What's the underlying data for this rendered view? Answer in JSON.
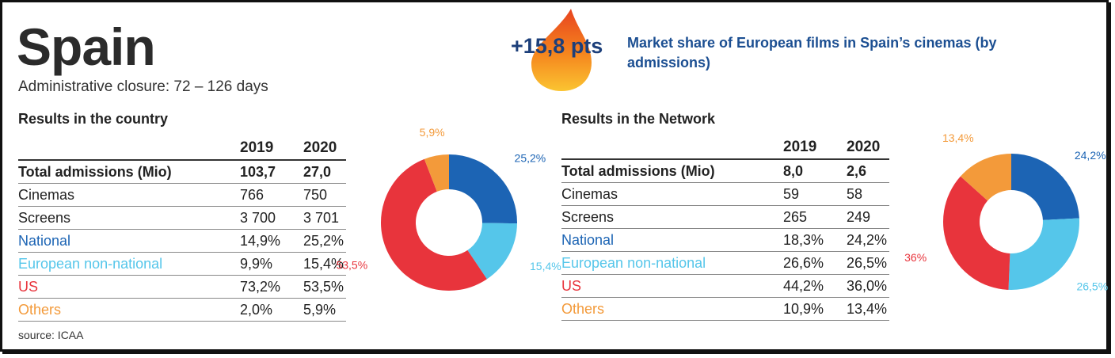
{
  "header": {
    "title": "Spain",
    "subtitle": "Administrative closure: 72 – 126 days",
    "badge_value": "+15,8 pts",
    "headline": "Market share of European films in Spain’s cinemas (by admissions)"
  },
  "colors": {
    "national": "#1c64b4",
    "european_non_national": "#55c6ea",
    "us": "#e8343c",
    "others": "#f39a3a"
  },
  "country": {
    "section_title": "Results in the country",
    "col_2019": "2019",
    "col_2020": "2020",
    "rows": [
      {
        "label": "Total admissions (Mio)",
        "v2019": "103,7",
        "v2020": "27,0"
      },
      {
        "label": "Cinemas",
        "v2019": "766",
        "v2020": "750"
      },
      {
        "label": "Screens",
        "v2019": "3 700",
        "v2020": "3 701"
      },
      {
        "label": "National",
        "v2019": "14,9%",
        "v2020": "25,2%"
      },
      {
        "label": "European non-national",
        "v2019": "9,9%",
        "v2020": "15,4%"
      },
      {
        "label": "US",
        "v2019": "73,2%",
        "v2020": "53,5%"
      },
      {
        "label": "Others",
        "v2019": "2,0%",
        "v2020": "5,9%"
      }
    ]
  },
  "network": {
    "section_title": "Results in the Network",
    "col_2019": "2019",
    "col_2020": "2020",
    "rows": [
      {
        "label": "Total admissions (Mio)",
        "v2019": "8,0",
        "v2020": "2,6"
      },
      {
        "label": "Cinemas",
        "v2019": "59",
        "v2020": "58"
      },
      {
        "label": "Screens",
        "v2019": "265",
        "v2020": "249"
      },
      {
        "label": "National",
        "v2019": "18,3%",
        "v2020": "24,2%"
      },
      {
        "label": "European non-national",
        "v2019": "26,6%",
        "v2020": "26,5%"
      },
      {
        "label": "US",
        "v2019": "44,2%",
        "v2020": "36,0%"
      },
      {
        "label": "Others",
        "v2019": "10,9%",
        "v2020": "13,4%"
      }
    ]
  },
  "chart_data": [
    {
      "type": "pie",
      "categories": [
        "National",
        "European non-national",
        "US",
        "Others"
      ],
      "values": [
        25.2,
        15.4,
        53.5,
        5.9
      ],
      "labels": [
        "25,2%",
        "15,4%",
        "53,5%",
        "5,9%"
      ],
      "colors": [
        "#1c64b4",
        "#55c6ea",
        "#e8343c",
        "#f39a3a"
      ]
    },
    {
      "type": "pie",
      "categories": [
        "National",
        "European non-national",
        "US",
        "Others"
      ],
      "values": [
        24.2,
        26.5,
        36.0,
        13.4
      ],
      "labels": [
        "24,2%",
        "26,5%",
        "36%",
        "13,4%"
      ],
      "colors": [
        "#1c64b4",
        "#55c6ea",
        "#e8343c",
        "#f39a3a"
      ]
    }
  ],
  "footer": {
    "source": "source: ICAA"
  }
}
